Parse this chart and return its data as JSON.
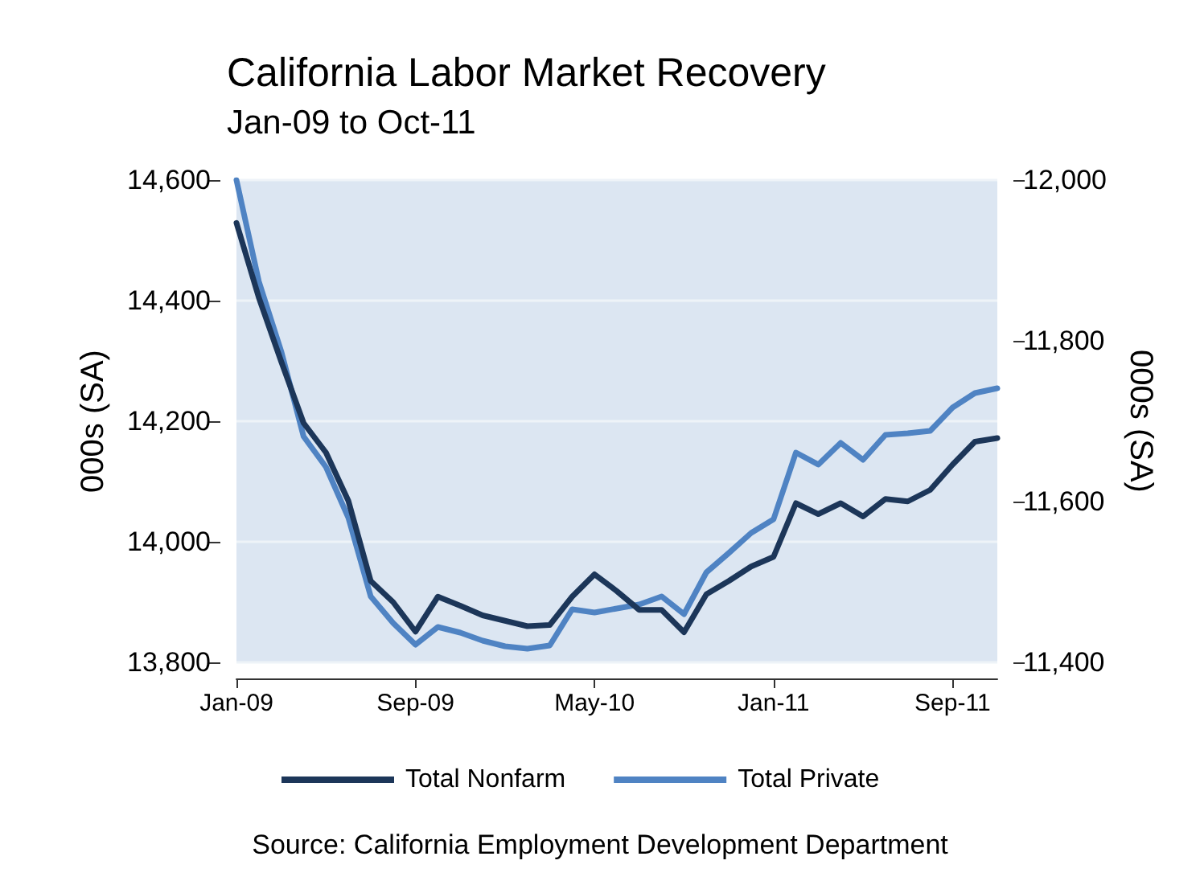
{
  "chart_data": {
    "type": "line",
    "title": "California Labor Market Recovery",
    "subtitle": "Jan-09 to Oct-11",
    "ylabel": "000s (SA)",
    "y2label": "000s (SA)",
    "categories": [
      "Jan-09",
      null,
      null,
      null,
      null,
      null,
      null,
      null,
      "Sep-09",
      null,
      null,
      null,
      null,
      null,
      null,
      null,
      "May-10",
      null,
      null,
      null,
      null,
      null,
      null,
      null,
      "Jan-11",
      null,
      null,
      null,
      null,
      null,
      null,
      null,
      "Sep-11",
      null,
      null
    ],
    "series": [
      {
        "name": "Total Nonfarm",
        "color": "#1c3659",
        "values": [
          14529,
          14405,
          14299,
          14197,
          14148,
          14068,
          13935,
          13900,
          13851,
          13909,
          13894,
          13878,
          13869,
          13860,
          13862,
          13909,
          13946,
          13918,
          13887,
          13887,
          13850,
          13913,
          13935,
          13959,
          13975,
          14064,
          14046,
          14064,
          14042,
          14071,
          14067,
          14086,
          14128,
          14166,
          14172
        ]
      },
      {
        "name": "Total Private",
        "color": "#4f83c3",
        "axis": "y2",
        "values": [
          12000,
          11874,
          11787,
          11681,
          11643,
          11580,
          11482,
          11449,
          11422,
          11444,
          11437,
          11427,
          11420,
          11417,
          11421,
          11466,
          11462,
          11467,
          11472,
          11482,
          11460,
          11512,
          11536,
          11561,
          11578,
          11661,
          11646,
          11673,
          11652,
          11683,
          11685,
          11688,
          11717,
          11735,
          11741
        ]
      }
    ],
    "ylim": [
      13800,
      14600
    ],
    "yticks": [
      {
        "value": 13800,
        "label": "13,800"
      },
      {
        "value": 14000,
        "label": "14,000"
      },
      {
        "value": 14200,
        "label": "14,200"
      },
      {
        "value": 14400,
        "label": "14,400"
      },
      {
        "value": 14600,
        "label": "14,600"
      }
    ],
    "y2lim": [
      11400,
      12000
    ],
    "y2ticks": [
      {
        "value": 11400,
        "label": "11,400"
      },
      {
        "value": 11600,
        "label": "11,600"
      },
      {
        "value": 11800,
        "label": "11,800"
      },
      {
        "value": 12000,
        "label": "12,000"
      }
    ],
    "grid": "y",
    "legend": "bottom",
    "marker": "none",
    "line_style": "solid",
    "annotations": [
      "Source: California Employment Development Department"
    ]
  }
}
